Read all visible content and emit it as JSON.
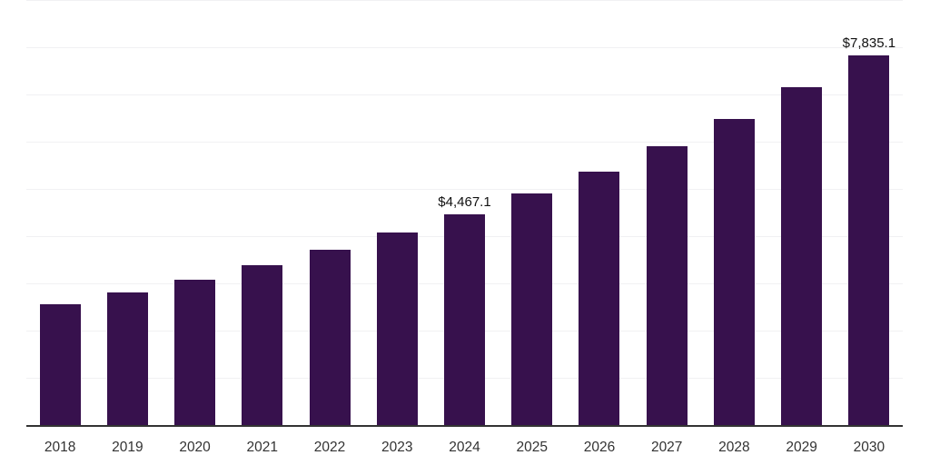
{
  "chart_data": {
    "type": "bar",
    "title": "",
    "xlabel": "",
    "ylabel": "",
    "categories": [
      "2018",
      "2019",
      "2020",
      "2021",
      "2022",
      "2023",
      "2024",
      "2025",
      "2026",
      "2027",
      "2028",
      "2029",
      "2030"
    ],
    "values": [
      2550,
      2810,
      3075,
      3390,
      3715,
      4070,
      4467.1,
      4900,
      5375,
      5910,
      6485,
      7145,
      7835.1
    ],
    "labeled_points": [
      {
        "category": "2024",
        "label": "$4,467.1"
      },
      {
        "category": "2030",
        "label": "$7,835.1"
      }
    ],
    "ylim": [
      0,
      9000
    ],
    "grid_interval": 1000,
    "grid": true,
    "legend": false,
    "colors": {
      "bar": "#37114D",
      "grid_line": "#f1f1f3",
      "axis_line": "#333333",
      "tick_label": "#333333",
      "data_label": "#111111",
      "background": "#ffffff"
    }
  }
}
